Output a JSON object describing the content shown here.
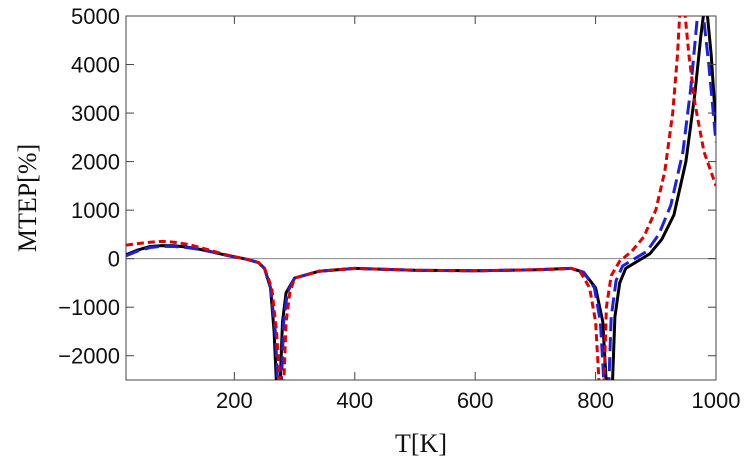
{
  "chart_data": {
    "type": "line",
    "title": "",
    "xlabel": "T[K]",
    "ylabel": "MTEP[%]",
    "xlim": [
      20,
      1000
    ],
    "ylim": [
      -2500,
      5000
    ],
    "x_ticks": [
      200,
      400,
      600,
      800,
      1000
    ],
    "y_ticks": [
      -2000,
      -1000,
      0,
      1000,
      2000,
      3000,
      4000,
      5000
    ],
    "x_tick_labels": [
      "200",
      "400",
      "600",
      "800",
      "1000"
    ],
    "y_tick_labels": [
      "−2000",
      "−1000",
      "0",
      "1000",
      "2000",
      "3000",
      "4000",
      "5000"
    ],
    "grid": false,
    "zero_line": true,
    "legend": "none",
    "series": [
      {
        "color": "#000000",
        "style": "solid",
        "points": [
          [
            20,
            80
          ],
          [
            40,
            180
          ],
          [
            60,
            250
          ],
          [
            80,
            270
          ],
          [
            100,
            265
          ],
          [
            120,
            240
          ],
          [
            140,
            200
          ],
          [
            160,
            150
          ],
          [
            180,
            90
          ],
          [
            200,
            40
          ],
          [
            220,
            -10
          ],
          [
            240,
            -80
          ],
          [
            250,
            -200
          ],
          [
            260,
            -600
          ],
          [
            266,
            -1500
          ],
          [
            270,
            -2600
          ],
          [
            276,
            -2600
          ],
          [
            280,
            -1300
          ],
          [
            286,
            -700
          ],
          [
            300,
            -400
          ],
          [
            340,
            -260
          ],
          [
            400,
            -200
          ],
          [
            500,
            -240
          ],
          [
            600,
            -250
          ],
          [
            700,
            -230
          ],
          [
            760,
            -200
          ],
          [
            780,
            -280
          ],
          [
            800,
            -600
          ],
          [
            812,
            -1300
          ],
          [
            818,
            -2600
          ],
          [
            828,
            -2600
          ],
          [
            832,
            -1200
          ],
          [
            840,
            -500
          ],
          [
            850,
            -200
          ],
          [
            870,
            -50
          ],
          [
            890,
            100
          ],
          [
            910,
            400
          ],
          [
            930,
            900
          ],
          [
            950,
            2000
          ],
          [
            965,
            3400
          ],
          [
            975,
            4600
          ],
          [
            980,
            5100
          ],
          [
            985,
            5100
          ],
          [
            992,
            4200
          ],
          [
            1000,
            2700
          ]
        ]
      },
      {
        "color": "#1f1fe0",
        "style": "dashed",
        "points": [
          [
            20,
            60
          ],
          [
            40,
            160
          ],
          [
            60,
            230
          ],
          [
            80,
            255
          ],
          [
            100,
            250
          ],
          [
            120,
            230
          ],
          [
            140,
            195
          ],
          [
            160,
            145
          ],
          [
            180,
            85
          ],
          [
            200,
            35
          ],
          [
            220,
            -10
          ],
          [
            240,
            -80
          ],
          [
            250,
            -200
          ],
          [
            260,
            -600
          ],
          [
            268,
            -1500
          ],
          [
            272,
            -2600
          ],
          [
            278,
            -2600
          ],
          [
            282,
            -1300
          ],
          [
            288,
            -700
          ],
          [
            300,
            -400
          ],
          [
            340,
            -260
          ],
          [
            400,
            -200
          ],
          [
            500,
            -240
          ],
          [
            600,
            -250
          ],
          [
            700,
            -230
          ],
          [
            760,
            -200
          ],
          [
            780,
            -280
          ],
          [
            798,
            -600
          ],
          [
            808,
            -1300
          ],
          [
            814,
            -2600
          ],
          [
            822,
            -2600
          ],
          [
            826,
            -1200
          ],
          [
            834,
            -450
          ],
          [
            845,
            -150
          ],
          [
            865,
            0
          ],
          [
            885,
            150
          ],
          [
            905,
            500
          ],
          [
            925,
            1100
          ],
          [
            945,
            2200
          ],
          [
            958,
            3500
          ],
          [
            967,
            4700
          ],
          [
            970,
            5100
          ],
          [
            978,
            5100
          ],
          [
            988,
            4000
          ],
          [
            1000,
            2400
          ]
        ]
      },
      {
        "color": "#e00000",
        "style": "dashed",
        "points": [
          [
            20,
            280
          ],
          [
            40,
            310
          ],
          [
            60,
            340
          ],
          [
            80,
            355
          ],
          [
            100,
            340
          ],
          [
            120,
            300
          ],
          [
            140,
            240
          ],
          [
            160,
            170
          ],
          [
            180,
            100
          ],
          [
            200,
            40
          ],
          [
            220,
            -10
          ],
          [
            240,
            -80
          ],
          [
            250,
            -200
          ],
          [
            262,
            -600
          ],
          [
            270,
            -1500
          ],
          [
            276,
            -2600
          ],
          [
            282,
            -2600
          ],
          [
            286,
            -1300
          ],
          [
            292,
            -700
          ],
          [
            300,
            -400
          ],
          [
            340,
            -260
          ],
          [
            400,
            -200
          ],
          [
            500,
            -240
          ],
          [
            600,
            -250
          ],
          [
            700,
            -230
          ],
          [
            760,
            -200
          ],
          [
            775,
            -280
          ],
          [
            790,
            -600
          ],
          [
            800,
            -1300
          ],
          [
            806,
            -2600
          ],
          [
            814,
            -2600
          ],
          [
            818,
            -1000
          ],
          [
            826,
            -350
          ],
          [
            840,
            -50
          ],
          [
            860,
            150
          ],
          [
            880,
            450
          ],
          [
            900,
            1000
          ],
          [
            915,
            1800
          ],
          [
            928,
            3000
          ],
          [
            936,
            4200
          ],
          [
            940,
            5100
          ],
          [
            948,
            5100
          ],
          [
            955,
            4200
          ],
          [
            965,
            3200
          ],
          [
            980,
            2200
          ],
          [
            1000,
            1500
          ]
        ]
      }
    ]
  }
}
